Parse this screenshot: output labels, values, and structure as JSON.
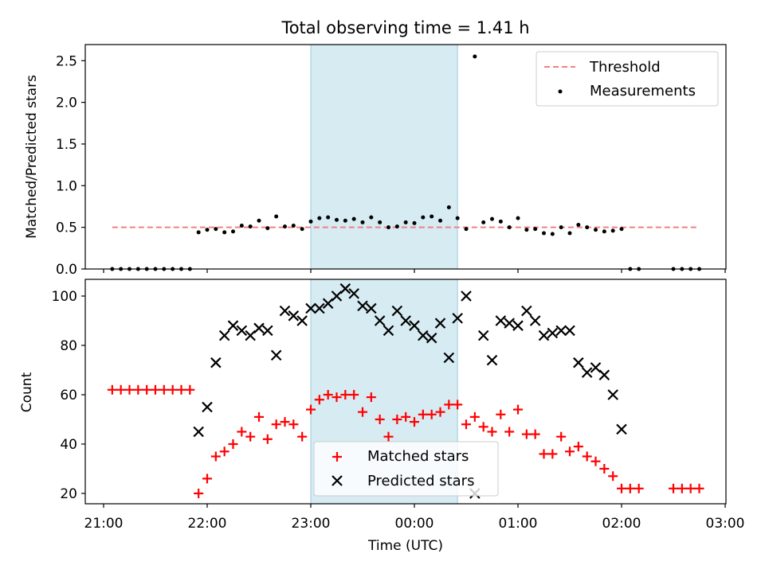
{
  "title": "Total observing time = 1.41 h",
  "chart_data": [
    {
      "type": "scatter",
      "panel": "top",
      "ylabel": "Matched/Predicted stars",
      "xlabel": "",
      "xlim": [
        "21:00",
        "03:00"
      ],
      "ylim": [
        0,
        2.7
      ],
      "yticks": [
        "0.0",
        "0.5",
        "1.0",
        "1.5",
        "2.0",
        "2.5"
      ],
      "xticks": [
        "21:00",
        "22:00",
        "23:00",
        "00:00",
        "01:00",
        "02:00",
        "03:00"
      ],
      "shaded_region": [
        "23:00",
        "00:25"
      ],
      "shaded_color": "#add8e6",
      "legend_position": "upper right",
      "threshold": {
        "name": "Threshold",
        "value": 0.5,
        "x": [
          "21:05",
          "02:45"
        ],
        "color": "#f08080",
        "style": "dashed"
      },
      "series": [
        {
          "name": "Measurements",
          "color": "#000000",
          "x": [
            "21:05",
            "21:10",
            "21:15",
            "21:20",
            "21:25",
            "21:30",
            "21:35",
            "21:40",
            "21:45",
            "21:50",
            "21:55",
            "22:00",
            "22:05",
            "22:10",
            "22:15",
            "22:20",
            "22:25",
            "22:30",
            "22:35",
            "22:40",
            "22:45",
            "22:50",
            "22:55",
            "23:00",
            "23:05",
            "23:10",
            "23:15",
            "23:20",
            "23:25",
            "23:30",
            "23:35",
            "23:40",
            "23:45",
            "23:50",
            "23:55",
            "00:00",
            "00:05",
            "00:10",
            "00:15",
            "00:20",
            "00:25",
            "00:30",
            "00:35",
            "00:40",
            "00:45",
            "00:50",
            "00:55",
            "01:00",
            "01:05",
            "01:10",
            "01:15",
            "01:20",
            "01:25",
            "01:30",
            "01:35",
            "01:40",
            "01:45",
            "01:50",
            "01:55",
            "02:00",
            "02:05",
            "02:10",
            "02:30",
            "02:35",
            "02:40",
            "02:45"
          ],
          "y": [
            0,
            0,
            0,
            0,
            0,
            0,
            0,
            0,
            0,
            0,
            0.44,
            0.47,
            0.48,
            0.44,
            0.45,
            0.52,
            0.51,
            0.58,
            0.49,
            0.63,
            0.51,
            0.52,
            0.48,
            0.57,
            0.61,
            0.62,
            0.59,
            0.58,
            0.6,
            0.56,
            0.62,
            0.56,
            0.5,
            0.51,
            0.56,
            0.55,
            0.62,
            0.63,
            0.58,
            0.74,
            0.61,
            0.48,
            2.55,
            0.56,
            0.6,
            0.57,
            0.5,
            0.61,
            0.47,
            0.48,
            0.43,
            0.42,
            0.5,
            0.43,
            0.53,
            0.5,
            0.47,
            0.45,
            0.46,
            0.48,
            0,
            0,
            0,
            0,
            0,
            0
          ]
        }
      ]
    },
    {
      "type": "scatter",
      "panel": "bottom",
      "ylabel": "Count",
      "xlabel": "Time (UTC)",
      "xlim": [
        "21:00",
        "03:00"
      ],
      "ylim": [
        15,
        107
      ],
      "yticks": [
        "20",
        "40",
        "60",
        "80",
        "100"
      ],
      "xticks": [
        "21:00",
        "22:00",
        "23:00",
        "00:00",
        "01:00",
        "02:00",
        "03:00"
      ],
      "shaded_region": [
        "23:00",
        "00:25"
      ],
      "legend_position": "lower center",
      "series": [
        {
          "name": "Matched stars",
          "color": "#ff0000",
          "marker": "+",
          "x": [
            "21:05",
            "21:10",
            "21:15",
            "21:20",
            "21:25",
            "21:30",
            "21:35",
            "21:40",
            "21:45",
            "21:50",
            "21:55",
            "22:00",
            "22:05",
            "22:10",
            "22:15",
            "22:20",
            "22:25",
            "22:30",
            "22:35",
            "22:40",
            "22:45",
            "22:50",
            "22:55",
            "23:00",
            "23:05",
            "23:10",
            "23:15",
            "23:20",
            "23:25",
            "23:30",
            "23:35",
            "23:40",
            "23:45",
            "23:50",
            "23:55",
            "00:00",
            "00:05",
            "00:10",
            "00:15",
            "00:20",
            "00:25",
            "00:30",
            "00:35",
            "00:40",
            "00:45",
            "00:50",
            "00:55",
            "01:00",
            "01:05",
            "01:10",
            "01:15",
            "01:20",
            "01:25",
            "01:30",
            "01:35",
            "01:40",
            "01:45",
            "01:50",
            "01:55",
            "02:00",
            "02:05",
            "02:10",
            "02:30",
            "02:35",
            "02:40",
            "02:45"
          ],
          "y": [
            62,
            62,
            62,
            62,
            62,
            62,
            62,
            62,
            62,
            62,
            20,
            26,
            35,
            37,
            40,
            45,
            43,
            51,
            42,
            48,
            49,
            48,
            43,
            54,
            58,
            60,
            59,
            60,
            60,
            53,
            59,
            50,
            43,
            50,
            51,
            49,
            52,
            52,
            53,
            56,
            56,
            48,
            51,
            47,
            45,
            52,
            45,
            54,
            44,
            44,
            36,
            36,
            43,
            37,
            39,
            35,
            33,
            30,
            27,
            22,
            22,
            22,
            22,
            22,
            22,
            22
          ]
        },
        {
          "name": "Predicted stars",
          "color": "#000000",
          "marker": "x",
          "x": [
            "21:55",
            "22:00",
            "22:05",
            "22:10",
            "22:15",
            "22:20",
            "22:25",
            "22:30",
            "22:35",
            "22:40",
            "22:45",
            "22:50",
            "22:55",
            "23:00",
            "23:05",
            "23:10",
            "23:15",
            "23:20",
            "23:25",
            "23:30",
            "23:35",
            "23:40",
            "23:45",
            "23:50",
            "23:55",
            "00:00",
            "00:05",
            "00:10",
            "00:15",
            "00:20",
            "00:25",
            "00:30",
            "00:35",
            "00:40",
            "00:45",
            "00:50",
            "00:55",
            "01:00",
            "01:05",
            "01:10",
            "01:15",
            "01:20",
            "01:25",
            "01:30",
            "01:35",
            "01:40",
            "01:45",
            "01:50",
            "01:55",
            "02:00"
          ],
          "y": [
            45,
            55,
            73,
            84,
            88,
            86,
            84,
            87,
            86,
            76,
            94,
            92,
            90,
            95,
            95,
            97,
            100,
            103,
            101,
            96,
            95,
            90,
            86,
            94,
            90,
            88,
            84,
            83,
            89,
            75,
            91,
            100,
            20,
            84,
            74,
            90,
            89,
            88,
            94,
            90,
            84,
            85,
            86,
            86,
            73,
            69,
            71,
            68,
            60,
            46
          ]
        }
      ]
    }
  ]
}
